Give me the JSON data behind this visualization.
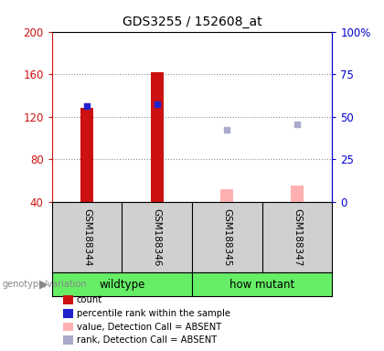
{
  "title": "GDS3255 / 152608_at",
  "samples": [
    "GSM188344",
    "GSM188346",
    "GSM188345",
    "GSM188347"
  ],
  "group_labels": [
    "wildtype",
    "how mutant"
  ],
  "group_color_wt": "#66ee66",
  "group_color_mut": "#66ee66",
  "left_ylim": [
    40,
    200
  ],
  "left_yticks": [
    40,
    80,
    120,
    160,
    200
  ],
  "right_ylim": [
    0,
    100
  ],
  "right_yticks": [
    0,
    25,
    50,
    75,
    100
  ],
  "right_yticklabels": [
    "0",
    "25",
    "50",
    "75",
    "100%"
  ],
  "bar_color_present": "#cc1111",
  "bar_color_absent": "#ffb0b0",
  "dot_color_present": "#2222cc",
  "dot_color_absent": "#aaaacc",
  "counts_present": [
    128,
    162,
    null,
    null
  ],
  "counts_absent": [
    null,
    null,
    52,
    55
  ],
  "ranks_present": [
    130,
    132,
    null,
    null
  ],
  "ranks_absent": [
    null,
    null,
    108,
    113
  ],
  "bar_width": 0.18,
  "dot_size": 25,
  "legend_items": [
    {
      "color": "#cc1111",
      "label": "count"
    },
    {
      "color": "#2222cc",
      "label": "percentile rank within the sample"
    },
    {
      "color": "#ffb0b0",
      "label": "value, Detection Call = ABSENT"
    },
    {
      "color": "#aaaacc",
      "label": "rank, Detection Call = ABSENT"
    }
  ],
  "genotype_label": "genotype/variation",
  "left_axis_color": "#cc1111",
  "right_axis_color": "#0000cc",
  "grid_color": "#888888",
  "sample_header_bg": "#d0d0d0",
  "plot_facecolor": "white"
}
